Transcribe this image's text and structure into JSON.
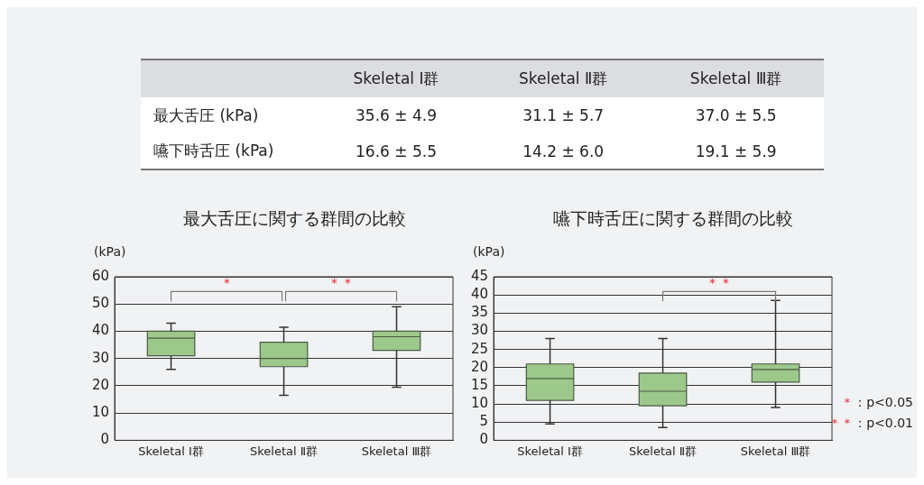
{
  "chart_data": [
    {
      "type": "other",
      "categories": [
        "Skeletal Ⅰ群",
        "Skeletal Ⅱ群",
        "Skeletal Ⅲ群"
      ],
      "y_categories": [
        "最大舌圧 (kPa)",
        "嚥下時舌圧 (kPa)"
      ],
      "cell_labels": [
        [
          "35.6 ± 4.9",
          "31.1 ± 5.7",
          "37.0 ± 5.5"
        ],
        [
          "16.6 ± 5.5",
          "14.2 ± 6.0",
          "19.1 ± 5.9"
        ]
      ]
    },
    {
      "type": "box",
      "title": "最大舌圧に関する群間の比較",
      "ylabel": "(kPa)",
      "categories": [
        "Skeletal Ⅰ群",
        "Skeletal Ⅱ群",
        "Skeletal Ⅲ群"
      ],
      "color": "#9cc98b",
      "boxes": [
        {
          "low": 26,
          "q1": 31,
          "median": 37.5,
          "q3": 40,
          "high": 43
        },
        {
          "low": 16.5,
          "q1": 27,
          "median": 30,
          "q3": 36,
          "high": 41.5
        },
        {
          "low": 19.5,
          "q1": 33,
          "median": 38,
          "q3": 40,
          "high": 49
        }
      ],
      "ylim": [
        0,
        60
      ],
      "yticks": [
        0,
        10,
        20,
        30,
        40,
        50,
        60
      ],
      "grid": "y",
      "annotations": [
        "＊",
        "＊＊"
      ]
    },
    {
      "type": "box",
      "title": "嚥下時舌圧に関する群間の比較",
      "ylabel": "(kPa)",
      "categories": [
        "Skeletal Ⅰ群",
        "Skeletal Ⅱ群",
        "Skeletal Ⅲ群"
      ],
      "color": "#9cc98b",
      "boxes": [
        {
          "low": 4.5,
          "q1": 11,
          "median": 17,
          "q3": 21,
          "high": 28
        },
        {
          "low": 3.5,
          "q1": 9.5,
          "median": 13.5,
          "q3": 18.5,
          "high": 28
        },
        {
          "low": 9,
          "q1": 16,
          "median": 19.5,
          "q3": 21,
          "high": 38.5
        }
      ],
      "ylim": [
        0,
        45
      ],
      "yticks": [
        0,
        5,
        10,
        15,
        20,
        25,
        30,
        35,
        40,
        45
      ],
      "grid": "y",
      "annotations": [
        "＊＊",
        "＊：p<0.05",
        "＊＊：p<0.01"
      ]
    }
  ]
}
